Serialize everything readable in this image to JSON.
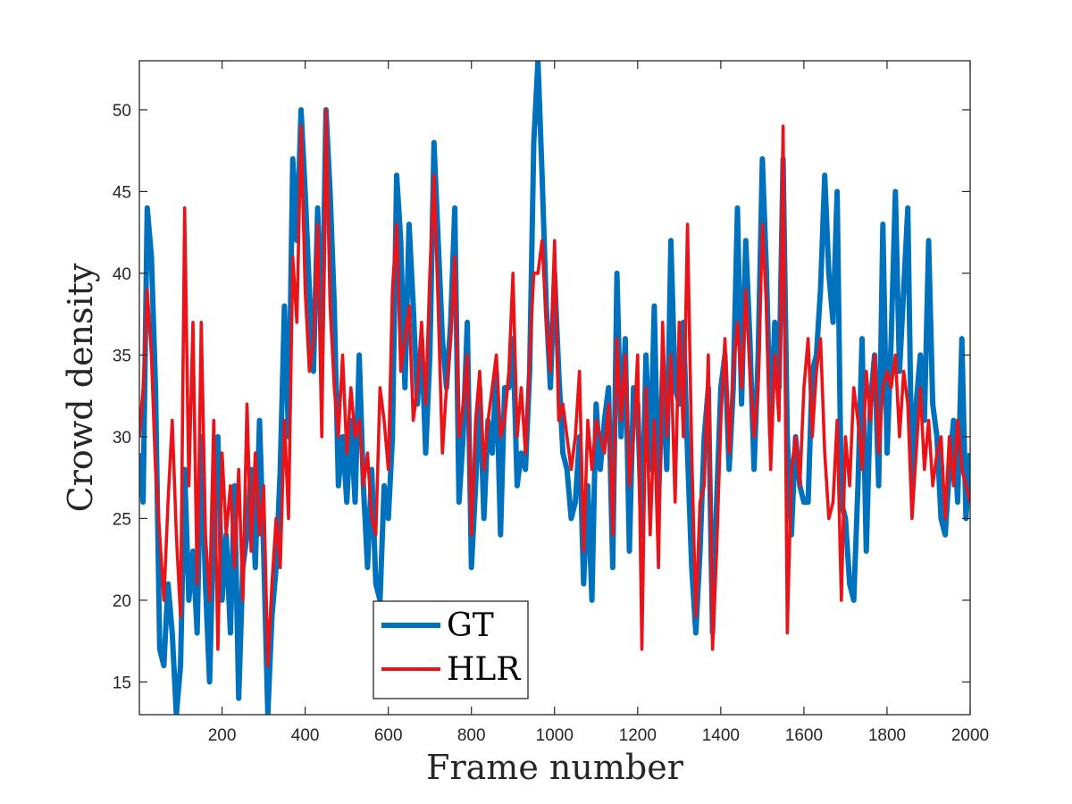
{
  "chart_data": {
    "type": "line",
    "xlabel": "Frame number",
    "ylabel": "Crowd density",
    "xlim": [
      1,
      2000
    ],
    "ylim": [
      13,
      53
    ],
    "xticks": [
      200,
      400,
      600,
      800,
      1000,
      1200,
      1400,
      1600,
      1800,
      2000
    ],
    "yticks": [
      15,
      20,
      25,
      30,
      35,
      40,
      45,
      50
    ],
    "grid": false,
    "legend_position": "lower-left-center",
    "colors": {
      "GT": "#0072BD",
      "HLR": "#E8141A",
      "axes": "#262626"
    },
    "series": [
      {
        "name": "GT",
        "x": [
          1,
          10,
          20,
          30,
          40,
          50,
          60,
          70,
          80,
          90,
          100,
          110,
          120,
          130,
          140,
          150,
          160,
          170,
          180,
          190,
          200,
          210,
          220,
          230,
          240,
          250,
          260,
          270,
          280,
          290,
          300,
          310,
          320,
          330,
          340,
          350,
          360,
          370,
          380,
          390,
          400,
          410,
          420,
          430,
          440,
          450,
          460,
          470,
          480,
          490,
          500,
          510,
          520,
          530,
          540,
          550,
          560,
          570,
          580,
          590,
          600,
          610,
          620,
          630,
          640,
          650,
          660,
          670,
          680,
          690,
          700,
          710,
          720,
          730,
          740,
          750,
          760,
          770,
          780,
          790,
          800,
          810,
          820,
          830,
          840,
          850,
          860,
          870,
          880,
          890,
          900,
          910,
          920,
          930,
          940,
          950,
          960,
          970,
          980,
          990,
          1000,
          1010,
          1020,
          1030,
          1040,
          1050,
          1060,
          1070,
          1080,
          1090,
          1100,
          1110,
          1120,
          1130,
          1140,
          1150,
          1160,
          1170,
          1180,
          1190,
          1200,
          1210,
          1220,
          1230,
          1240,
          1250,
          1260,
          1270,
          1280,
          1290,
          1300,
          1310,
          1320,
          1330,
          1340,
          1350,
          1360,
          1370,
          1380,
          1390,
          1400,
          1410,
          1420,
          1430,
          1440,
          1450,
          1460,
          1470,
          1480,
          1490,
          1500,
          1510,
          1520,
          1530,
          1540,
          1550,
          1560,
          1570,
          1580,
          1590,
          1600,
          1610,
          1620,
          1630,
          1640,
          1650,
          1660,
          1670,
          1680,
          1690,
          1700,
          1710,
          1720,
          1730,
          1740,
          1750,
          1760,
          1770,
          1780,
          1790,
          1800,
          1810,
          1820,
          1830,
          1840,
          1850,
          1860,
          1870,
          1880,
          1890,
          1900,
          1910,
          1920,
          1930,
          1940,
          1950,
          1960,
          1970,
          1980,
          1990,
          2000
        ],
        "y": [
          29,
          26,
          44,
          41,
          33,
          17,
          16,
          21,
          18,
          13,
          16,
          28,
          20,
          23,
          18,
          30,
          21,
          15,
          25,
          30,
          20,
          24,
          18,
          27,
          14,
          22,
          24,
          28,
          22,
          31,
          23,
          13,
          19,
          22,
          28,
          38,
          30,
          47,
          42,
          50,
          45,
          39,
          34,
          44,
          35,
          50,
          45,
          38,
          27,
          30,
          26,
          31,
          26,
          35,
          27,
          22,
          28,
          21,
          20,
          27,
          25,
          30,
          46,
          42,
          33,
          43,
          38,
          32,
          36,
          29,
          35,
          48,
          42,
          36,
          33,
          37,
          44,
          26,
          30,
          37,
          22,
          27,
          33,
          25,
          31,
          29,
          34,
          24,
          33,
          33,
          36,
          27,
          29,
          28,
          34,
          48,
          53,
          46,
          38,
          33,
          40,
          34,
          29,
          28,
          25,
          26,
          30,
          21,
          27,
          20,
          32,
          28,
          31,
          33,
          22,
          40,
          30,
          36,
          23,
          33,
          32,
          24,
          35,
          28,
          38,
          26,
          34,
          28,
          42,
          33,
          32,
          37,
          29,
          22,
          18,
          23,
          30,
          33,
          18,
          26,
          33,
          35,
          28,
          33,
          44,
          32,
          42,
          36,
          28,
          35,
          47,
          40,
          30,
          37,
          33,
          47,
          30,
          24,
          30,
          27,
          26,
          26,
          34,
          35,
          39,
          46,
          40,
          37,
          45,
          26,
          25,
          21,
          20,
          27,
          36,
          23,
          32,
          35,
          27,
          43,
          29,
          36,
          45,
          34,
          39,
          44,
          27,
          32,
          35,
          31,
          42,
          32,
          30,
          25,
          24,
          28,
          31,
          26,
          36,
          25,
          29
        ]
      },
      {
        "name": "HLR",
        "x": [
          1,
          10,
          20,
          30,
          40,
          50,
          60,
          70,
          80,
          90,
          100,
          110,
          120,
          130,
          140,
          150,
          160,
          170,
          180,
          190,
          200,
          210,
          220,
          230,
          240,
          250,
          260,
          270,
          280,
          290,
          300,
          310,
          320,
          330,
          340,
          350,
          360,
          370,
          380,
          390,
          400,
          410,
          420,
          430,
          440,
          450,
          460,
          470,
          480,
          490,
          500,
          510,
          520,
          530,
          540,
          550,
          560,
          570,
          580,
          590,
          600,
          610,
          620,
          630,
          640,
          650,
          660,
          670,
          680,
          690,
          700,
          710,
          720,
          730,
          740,
          750,
          760,
          770,
          780,
          790,
          800,
          810,
          820,
          830,
          840,
          850,
          860,
          870,
          880,
          890,
          900,
          910,
          920,
          930,
          940,
          950,
          960,
          970,
          980,
          990,
          1000,
          1010,
          1020,
          1030,
          1040,
          1050,
          1060,
          1070,
          1080,
          1090,
          1100,
          1110,
          1120,
          1130,
          1140,
          1150,
          1160,
          1170,
          1180,
          1190,
          1200,
          1210,
          1220,
          1230,
          1240,
          1250,
          1260,
          1270,
          1280,
          1290,
          1300,
          1310,
          1320,
          1330,
          1340,
          1350,
          1360,
          1370,
          1380,
          1390,
          1400,
          1410,
          1420,
          1430,
          1440,
          1450,
          1460,
          1470,
          1480,
          1490,
          1500,
          1510,
          1520,
          1530,
          1540,
          1550,
          1560,
          1570,
          1580,
          1590,
          1600,
          1610,
          1620,
          1630,
          1640,
          1650,
          1660,
          1670,
          1680,
          1690,
          1700,
          1710,
          1720,
          1730,
          1740,
          1750,
          1760,
          1770,
          1780,
          1790,
          1800,
          1810,
          1820,
          1830,
          1840,
          1850,
          1860,
          1870,
          1880,
          1890,
          1900,
          1910,
          1920,
          1930,
          1940,
          1950,
          1960,
          1970,
          1980,
          1990,
          2000
        ],
        "y": [
          30,
          33,
          39,
          35,
          28,
          24,
          20,
          26,
          31,
          24,
          19,
          44,
          27,
          37,
          21,
          37,
          24,
          20,
          31,
          17,
          29,
          24,
          27,
          22,
          28,
          20,
          32,
          23,
          29,
          24,
          27,
          16,
          21,
          25,
          22,
          31,
          25,
          41,
          37,
          49,
          39,
          34,
          36,
          43,
          30,
          50,
          38,
          33,
          30,
          35,
          29,
          33,
          30,
          31,
          27,
          29,
          25,
          24,
          33,
          31,
          28,
          39,
          43,
          34,
          36,
          38,
          31,
          33,
          37,
          32,
          40,
          46,
          38,
          29,
          33,
          36,
          41,
          30,
          32,
          35,
          24,
          31,
          34,
          28,
          31,
          33,
          35,
          30,
          31,
          34,
          40,
          30,
          33,
          29,
          35,
          40,
          40,
          42,
          37,
          34,
          42,
          31,
          32,
          30,
          28,
          30,
          34,
          23,
          31,
          28,
          31,
          30,
          29,
          32,
          24,
          36,
          31,
          35,
          27,
          30,
          35,
          17,
          33,
          24,
          31,
          22,
          37,
          30,
          35,
          26,
          37,
          30,
          43,
          29,
          19,
          26,
          27,
          35,
          17,
          23,
          31,
          36,
          29,
          34,
          37,
          33,
          39,
          34,
          30,
          33,
          43,
          38,
          28,
          35,
          31,
          49,
          18,
          28,
          30,
          27,
          33,
          36,
          30,
          34,
          36,
          29,
          25,
          26,
          31,
          20,
          30,
          27,
          33,
          31,
          28,
          34,
          31,
          35,
          29,
          33,
          34,
          33,
          35,
          30,
          34,
          32,
          25,
          29,
          33,
          28,
          31,
          27,
          29,
          30,
          25,
          30,
          27,
          31,
          28,
          27,
          26
        ]
      }
    ]
  }
}
